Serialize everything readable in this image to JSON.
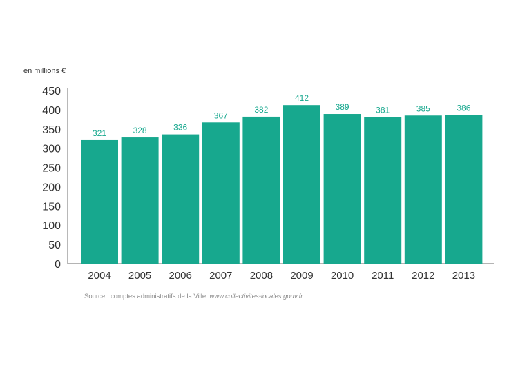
{
  "chart_data": {
    "type": "bar",
    "title": "",
    "ylabel": "en millions €",
    "xlabel": "",
    "categories": [
      "2004",
      "2005",
      "2006",
      "2007",
      "2008",
      "2009",
      "2010",
      "2011",
      "2012",
      "2013"
    ],
    "values": [
      321,
      328,
      336,
      367,
      382,
      412,
      389,
      381,
      385,
      386
    ],
    "ylim": [
      0,
      450
    ],
    "yticks": [
      0,
      50,
      100,
      150,
      200,
      250,
      300,
      350,
      400,
      450
    ],
    "grid": false,
    "data_labels": true,
    "colors": {
      "bar": "#17a88e",
      "label": "#17a88e",
      "axis": "#888888",
      "text": "#333333"
    }
  },
  "source": {
    "prefix": "Source : comptes administratifs de la Ville, ",
    "url": "www.collectivites-locales.gouv.fr"
  }
}
